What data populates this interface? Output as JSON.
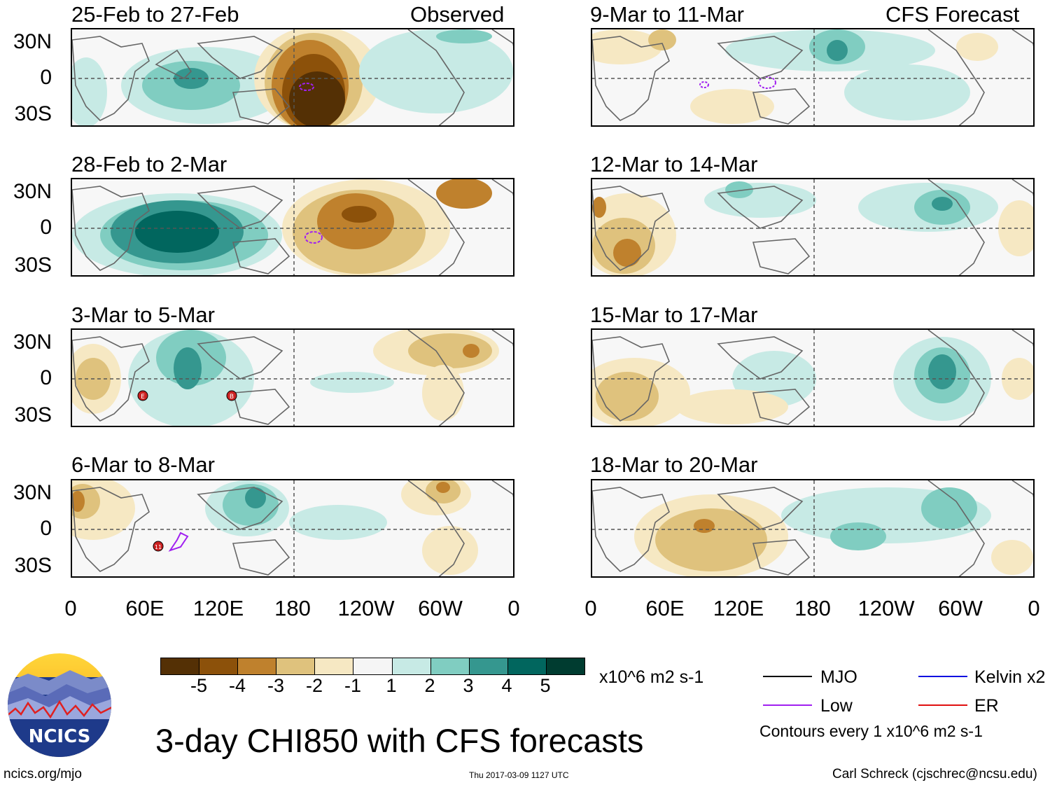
{
  "main_title": "3-day CHI850 with CFS forecasts",
  "logo_text": "NCICS",
  "footer": {
    "url": "ncics.org/mjo",
    "timestamp": "Thu 2017-03-09 1127 UTC",
    "author": "Carl Schreck (cjschrec@ncsu.edu)"
  },
  "y_ticks": [
    "30N",
    "0",
    "30S"
  ],
  "x_ticks": [
    "0",
    "60E",
    "120E",
    "180",
    "120W",
    "60W",
    "0"
  ],
  "panels": [
    {
      "id": "p1",
      "title": "25-Feb to 27-Feb",
      "tag": "Observed"
    },
    {
      "id": "p2",
      "title": "28-Feb to 2-Mar",
      "tag": ""
    },
    {
      "id": "p3",
      "title": "3-Mar to 5-Mar",
      "tag": ""
    },
    {
      "id": "p4",
      "title": "6-Mar to 8-Mar",
      "tag": ""
    },
    {
      "id": "p5",
      "title": "9-Mar to 11-Mar",
      "tag": "CFS Forecast"
    },
    {
      "id": "p6",
      "title": "12-Mar to 14-Mar",
      "tag": ""
    },
    {
      "id": "p7",
      "title": "15-Mar to 17-Mar",
      "tag": ""
    },
    {
      "id": "p8",
      "title": "18-Mar to 20-Mar",
      "tag": ""
    }
  ],
  "colorbar": {
    "labels": [
      "-5",
      "-4",
      "-3",
      "-2",
      "-1",
      "1",
      "2",
      "3",
      "4",
      "5"
    ],
    "units": "x10^6 m2 s-1",
    "colors": [
      "#543005",
      "#8c510a",
      "#bf812d",
      "#dfc27d",
      "#f6e8c3",
      "#f5f5f5",
      "#c7eae5",
      "#80cdc1",
      "#35978f",
      "#01665e",
      "#003c30"
    ]
  },
  "legend": {
    "items": [
      {
        "label": "MJO",
        "color": "#000000"
      },
      {
        "label": "Low",
        "color": "#a020f0"
      },
      {
        "label": "Kelvin x2",
        "color": "#1010e0"
      },
      {
        "label": "ER",
        "color": "#e01010"
      }
    ],
    "note": "Contours every 1 x10^6 m2 s-1"
  },
  "storm_markers": [
    {
      "panel": "p3",
      "label": "E"
    },
    {
      "panel": "p3",
      "label": "B"
    },
    {
      "panel": "p4",
      "label": "11"
    }
  ]
}
